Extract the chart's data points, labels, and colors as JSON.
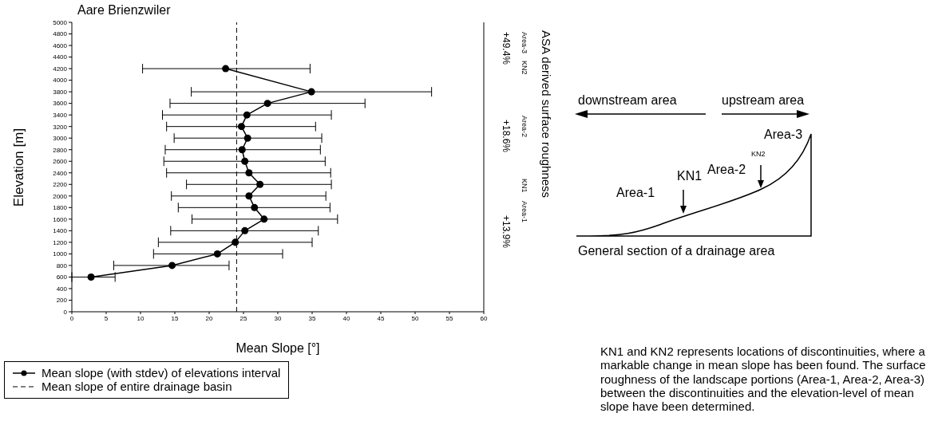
{
  "chart_data": {
    "type": "line",
    "title": "Aare Brienzwiler",
    "xlabel": "Mean Slope [°]",
    "ylabel": "Elevation  [m]",
    "series": [
      {
        "name": "Mean slope (with stdev) of elevations interval",
        "color": "#000000",
        "x": [
          2.8,
          14.6,
          21.2,
          23.8,
          25.2,
          28,
          26.6,
          25.8,
          27.4,
          25.8,
          25.2,
          24.8,
          25.6,
          24.7,
          25.5,
          28.5,
          34.9,
          22.4
        ],
        "values": [
          600,
          800,
          1000,
          1200,
          1400,
          1600,
          1800,
          2000,
          2200,
          2400,
          2600,
          2800,
          3000,
          3200,
          3400,
          3600,
          3800,
          4200
        ],
        "xerrors": [
          [
            0,
            6.3
          ],
          [
            6.1,
            22.9
          ],
          [
            11.9,
            30.7
          ],
          [
            12.6,
            35
          ],
          [
            14.4,
            35.9
          ],
          [
            17.5,
            38.7
          ],
          [
            15.5,
            37.6
          ],
          [
            14.5,
            37
          ],
          [
            16.7,
            37.8
          ],
          [
            13.8,
            37.7
          ],
          [
            13.4,
            36.9
          ],
          [
            13.6,
            36.2
          ],
          [
            14.9,
            36.4
          ],
          [
            13.8,
            35.5
          ],
          [
            13.2,
            37.8
          ],
          [
            14.3,
            42.7
          ],
          [
            17.4,
            52.4
          ],
          [
            10.3,
            34.7
          ]
        ]
      }
    ],
    "marker": "circle",
    "line_style": "solid",
    "xlim": [
      0,
      60
    ],
    "xticks": [
      0,
      5,
      10,
      15,
      20,
      25,
      30,
      35,
      40,
      45,
      50,
      55,
      60
    ],
    "ylim": [
      0,
      5000
    ],
    "yticks": [
      0,
      200,
      400,
      600,
      800,
      1000,
      1200,
      1400,
      1600,
      1800,
      2000,
      2200,
      2400,
      2600,
      2800,
      3000,
      3200,
      3400,
      3600,
      3800,
      4000,
      4200,
      4400,
      4600,
      4800,
      5000
    ],
    "ref_lines": [
      {
        "axis": "x",
        "value": 24,
        "label": "Mean slope of entire drainage basin",
        "line_style": "dashed",
        "color": "#000000"
      }
    ],
    "legend": "bottom",
    "annotations": [
      "ASA derived surface roughness",
      "Area-3",
      "KN2",
      "+49.4%",
      "Area-2",
      "+18.6%",
      "KN1",
      "Area-1",
      "+13.9%",
      "downstream area",
      "upstream area",
      "Area-3",
      "Area-2",
      "KN2",
      "KN1",
      "Area-1",
      "General section of a drainage area",
      "KN1 and KN2 represents locations of discontinuities, where a markable change in mean slope has been found. The surface roughness of the landscape portions (Area-1, Area-2, Area-3) between the discontinuities and the elevation-level of mean slope have been determined."
    ]
  }
}
